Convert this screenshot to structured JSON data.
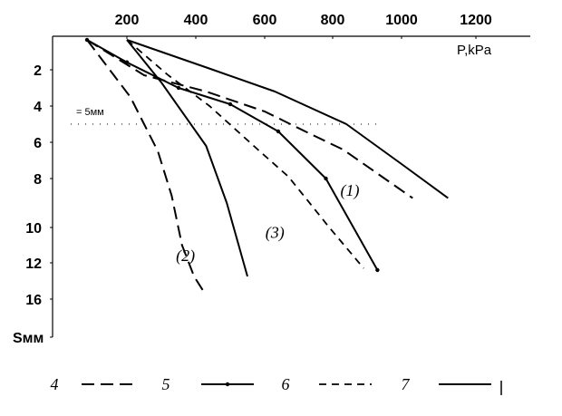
{
  "chart_data": {
    "type": "line",
    "xlabel": "P,kPa",
    "ylabel": "Sмм",
    "x_ticks": [
      200,
      400,
      600,
      800,
      1000,
      1200
    ],
    "y_ticks": [
      "2",
      "4",
      "6",
      "8",
      "10",
      "12",
      "16"
    ],
    "xlim": [
      100,
      1200
    ],
    "note": "= 5мм",
    "curve_labels": [
      {
        "text": "(1)",
        "x": 850,
        "y": 8.7
      },
      {
        "text": "(2)",
        "x": 370,
        "y": 11.9
      },
      {
        "text": "(3)",
        "x": 630,
        "y": 10.6
      }
    ],
    "legend": [
      {
        "label": "4",
        "style": "longdash"
      },
      {
        "label": "5",
        "style": "marked"
      },
      {
        "label": "6",
        "style": "shortdash"
      },
      {
        "label": "7",
        "style": "solid"
      }
    ],
    "series": [
      {
        "style": "longdash",
        "points": [
          [
            100,
            0.8
          ],
          [
            210,
            3.5
          ],
          [
            250,
            5.0
          ],
          [
            290,
            6.5
          ],
          [
            330,
            8.7
          ],
          [
            360,
            11.0
          ],
          [
            395,
            13.5
          ],
          [
            420,
            15.0
          ]
        ]
      },
      {
        "style": "solid",
        "points": [
          [
            200,
            0.8
          ],
          [
            300,
            2.7
          ],
          [
            430,
            6.2
          ],
          [
            490,
            9.0
          ],
          [
            550,
            13.5
          ]
        ]
      },
      {
        "style": "marked",
        "points": [
          [
            100,
            0.8
          ],
          [
            200,
            1.7
          ],
          [
            350,
            3.0
          ],
          [
            500,
            3.9
          ],
          [
            640,
            5.4
          ],
          [
            780,
            8.0
          ],
          [
            930,
            12.8
          ]
        ]
      },
      {
        "style": "shortdash",
        "points": [
          [
            200,
            0.8
          ],
          [
            320,
            2.3
          ],
          [
            440,
            4.0
          ],
          [
            580,
            6.4
          ],
          [
            670,
            7.9
          ],
          [
            790,
            10.0
          ],
          [
            890,
            12.6
          ]
        ]
      },
      {
        "style": "longdash",
        "points": [
          [
            100,
            0.8
          ],
          [
            250,
            2.3
          ],
          [
            430,
            3.2
          ],
          [
            600,
            4.3
          ],
          [
            730,
            5.5
          ],
          [
            830,
            6.4
          ],
          [
            1030,
            8.8
          ]
        ]
      },
      {
        "style": "solid",
        "points": [
          [
            200,
            0.8
          ],
          [
            450,
            2.0
          ],
          [
            630,
            3.2
          ],
          [
            840,
            5.0
          ],
          [
            1000,
            7.2
          ],
          [
            1125,
            8.8
          ]
        ]
      }
    ]
  }
}
